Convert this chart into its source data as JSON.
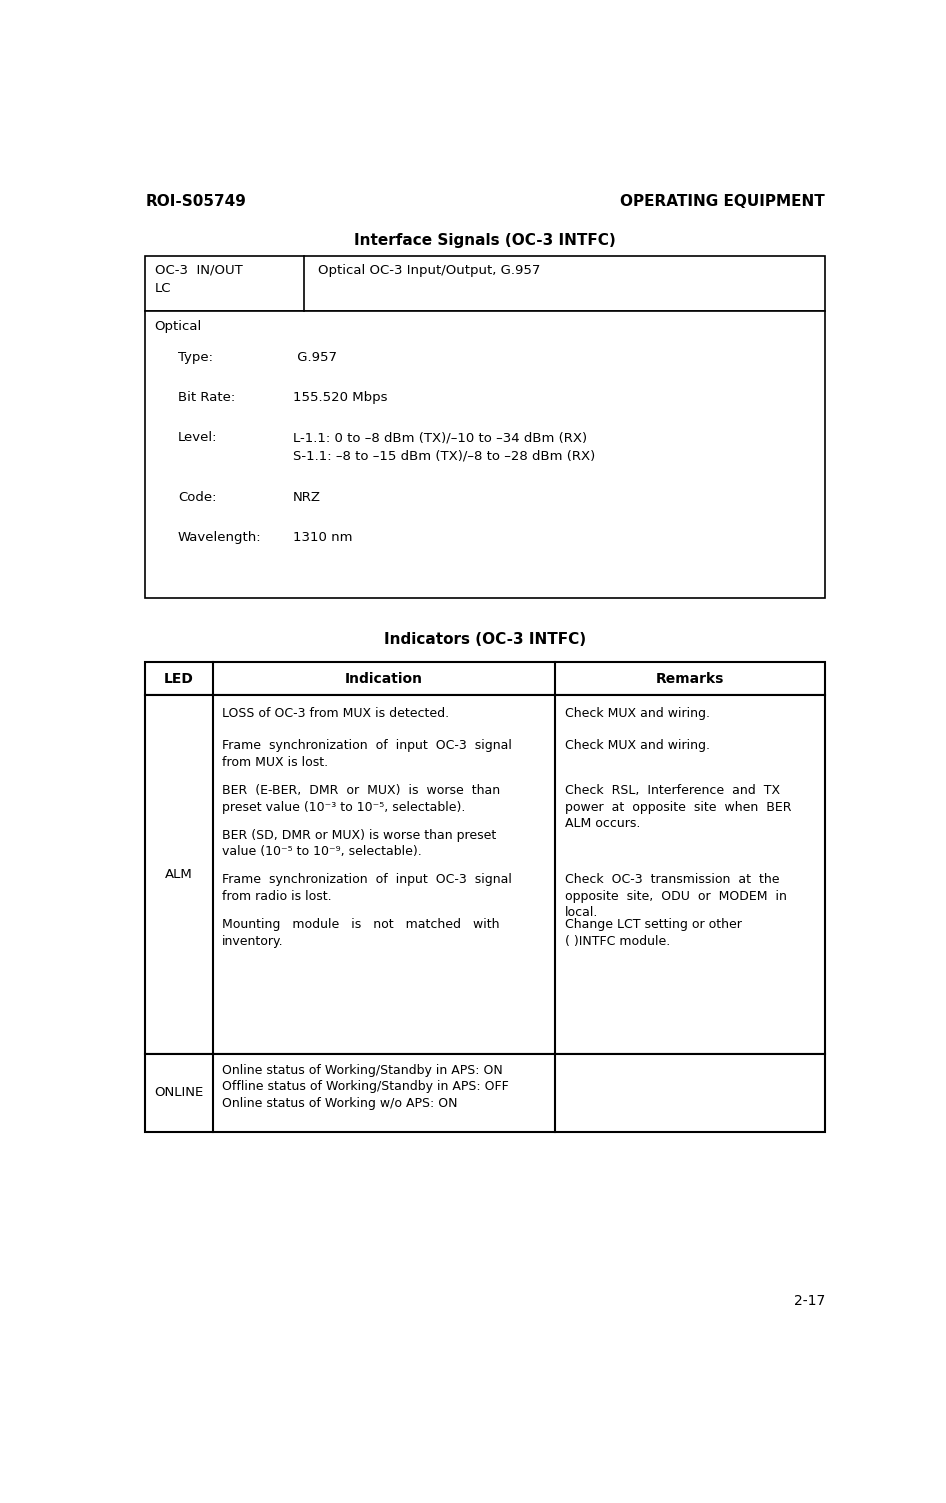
{
  "page_width": 9.46,
  "page_height": 15.03,
  "bg_color": "#ffffff",
  "header_left": "ROI-S05749",
  "header_right": "OPERATING EQUIPMENT",
  "footer_text": "2-17",
  "table1_title": "Interface Signals (OC-3 INTFC)",
  "table2_title": "Indicators (OC-3 INTFC)",
  "t1_row1_col1": "OC-3  IN/OUT\nLC",
  "t1_row1_col2": "Optical OC-3 Input/Output, G.957",
  "t1_optical_label": "Optical",
  "t1_subrows": [
    {
      "label": "Type:",
      "value": " G.957"
    },
    {
      "label": "Bit Rate:",
      "value": "155.520 Mbps"
    },
    {
      "label": "Level:",
      "value": "L-1.1: 0 to –8 dBm (TX)/–10 to –34 dBm (RX)\nS-1.1: –8 to –15 dBm (TX)/–8 to –28 dBm (RX)"
    },
    {
      "label": "Code:",
      "value": "NRZ"
    },
    {
      "label": "Wavelength:",
      "value": "1310 nm"
    }
  ],
  "t2_header": [
    "LED",
    "Indication",
    "Remarks"
  ],
  "alm_indications": [
    "LOSS of OC-3 from MUX is detected.",
    "Frame  synchronization  of  input  OC-3  signal\nfrom MUX is lost.",
    "BER  (E-BER,  DMR  or  MUX)  is  worse  than\npreset value (10⁻³ to 10⁻⁵, selectable).",
    "BER (SD, DMR or MUX) is worse than preset\nvalue (10⁻⁵ to 10⁻⁹, selectable).",
    "Frame  synchronization  of  input  OC-3  signal\nfrom radio is lost.",
    "Mounting   module   is   not   matched   with\ninventory."
  ],
  "alm_remarks": [
    "Check MUX and wiring.",
    "Check MUX and wiring.",
    "Check  RSL,  Interference  and  TX\npower  at  opposite  site  when  BER\nALM occurs.",
    "Check  OC-3  transmission  at  the\nopposite  site,  ODU  or  MODEM  in\nlocal.",
    "Change LCT setting or other\n( )INTFC module."
  ],
  "online_indication": "Online status of Working/Standby in APS: ON\nOffline status of Working/Standby in APS: OFF\nOnline status of Working w/o APS: ON",
  "online_remark": ""
}
